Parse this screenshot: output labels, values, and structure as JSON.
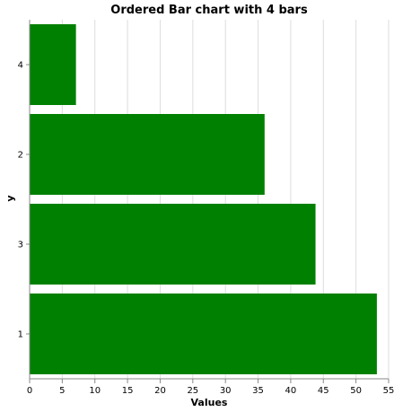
{
  "chart_data": {
    "type": "bar",
    "orientation": "horizontal",
    "title": "Ordered Bar chart with 4 bars",
    "xlabel": "Values",
    "ylabel": "y",
    "categories": [
      "4",
      "2",
      "3",
      "1"
    ],
    "values": [
      7.1,
      36,
      43.8,
      53.2
    ],
    "xlim": [
      0,
      55
    ],
    "xticks": [
      0,
      5,
      10,
      15,
      20,
      25,
      30,
      35,
      40,
      45,
      50,
      55
    ],
    "grid": true,
    "bar_color": "#008000",
    "grid_color": "#dddddd",
    "axis_color": "#888888"
  }
}
